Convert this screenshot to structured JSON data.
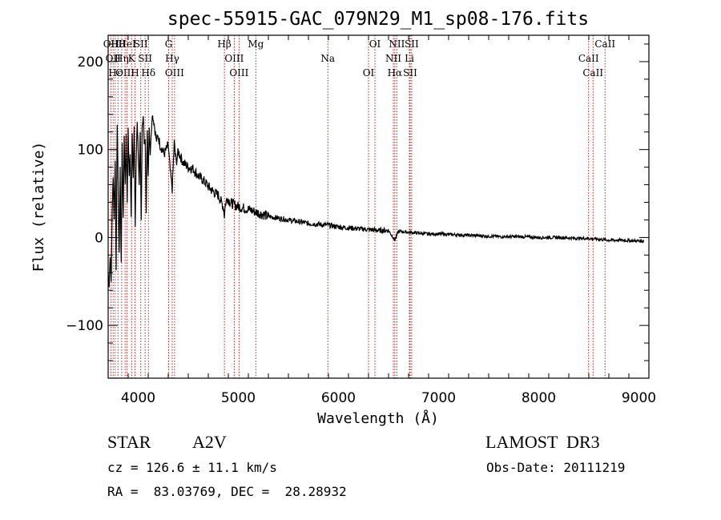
{
  "chart_data": {
    "type": "line",
    "title": "spec-55915-GAC_079N29_M1_sp08-176.fits",
    "xlabel": "Wavelength (Å)",
    "ylabel": "Flux (relative)",
    "xlim": [
      3700,
      9100
    ],
    "ylim": [
      -160,
      230
    ],
    "x_ticks": [
      4000,
      5000,
      6000,
      7000,
      8000,
      9000
    ],
    "y_ticks": [
      -100,
      0,
      100,
      200
    ],
    "grid": false,
    "series": [
      {
        "name": "spectrum",
        "x": [
          3700,
          3710,
          3720,
          3730,
          3740,
          3750,
          3760,
          3770,
          3780,
          3790,
          3800,
          3810,
          3820,
          3830,
          3840,
          3850,
          3860,
          3870,
          3880,
          3890,
          3900,
          3910,
          3920,
          3930,
          3940,
          3950,
          3960,
          3970,
          3980,
          3990,
          4000,
          4010,
          4020,
          4030,
          4040,
          4050,
          4060,
          4070,
          4080,
          4090,
          4100,
          4110,
          4120,
          4140,
          4160,
          4180,
          4200,
          4220,
          4240,
          4260,
          4280,
          4300,
          4320,
          4340,
          4360,
          4380,
          4400,
          4450,
          4500,
          4550,
          4600,
          4650,
          4700,
          4750,
          4800,
          4830,
          4850,
          4861,
          4870,
          4890,
          4920,
          4950,
          5000,
          5100,
          5200,
          5300,
          5400,
          5500,
          5600,
          5700,
          5800,
          5900,
          6000,
          6100,
          6200,
          6300,
          6400,
          6500,
          6563,
          6600,
          6700,
          6800,
          6900,
          7000,
          7200,
          7400,
          7600,
          7800,
          8000,
          8200,
          8400,
          8500,
          8600,
          8700,
          8800,
          9000,
          9050
        ],
        "y": [
          -40,
          -55,
          -20,
          -50,
          30,
          70,
          20,
          90,
          -35,
          130,
          60,
          -20,
          80,
          -30,
          110,
          20,
          115,
          60,
          118,
          40,
          122,
          70,
          95,
          25,
          120,
          65,
          125,
          15,
          90,
          130,
          100,
          60,
          120,
          20,
          125,
          140,
          105,
          110,
          30,
          120,
          70,
          125,
          95,
          140,
          130,
          110,
          115,
          105,
          100,
          95,
          100,
          105,
          75,
          55,
          108,
          85,
          98,
          85,
          80,
          78,
          70,
          65,
          58,
          52,
          48,
          40,
          35,
          25,
          38,
          45,
          40,
          38,
          35,
          32,
          28,
          24,
          22,
          20,
          18,
          16,
          15,
          14,
          12,
          11,
          10,
          9,
          8,
          8,
          -3,
          7,
          6,
          5,
          4,
          4,
          3,
          2,
          1,
          1,
          0,
          0,
          -1,
          -1,
          -2,
          -3,
          -3,
          -4,
          -4
        ]
      }
    ],
    "line_markers": [
      {
        "wl": 3727,
        "label": "OII"
      },
      {
        "wl": 3750,
        "label": "OII"
      },
      {
        "wl": 3770,
        "label": "Hε"
      },
      {
        "wl": 3798,
        "label": "Hθ"
      },
      {
        "wl": 3835,
        "label": "Hη"
      },
      {
        "wl": 3869,
        "label": "OIII"
      },
      {
        "wl": 3889,
        "label": "HeI"
      },
      {
        "wl": 3934,
        "label": "K"
      },
      {
        "wl": 3968,
        "label": "H"
      },
      {
        "wl": 4026,
        "label": "SII"
      },
      {
        "wl": 4069,
        "label": "SII"
      },
      {
        "wl": 4102,
        "label": "Hδ"
      },
      {
        "wl": 4304,
        "label": "G"
      },
      {
        "wl": 4340,
        "label": "Hγ"
      },
      {
        "wl": 4363,
        "label": "OIII"
      },
      {
        "wl": 4861,
        "label": "Hβ"
      },
      {
        "wl": 4959,
        "label": "OIII"
      },
      {
        "wl": 5007,
        "label": "OIII"
      },
      {
        "wl": 5175,
        "label": "Mg"
      },
      {
        "wl": 5894,
        "label": "Na"
      },
      {
        "wl": 6300,
        "label": "OI"
      },
      {
        "wl": 6364,
        "label": "OI"
      },
      {
        "wl": 6548,
        "label": "NII"
      },
      {
        "wl": 6563,
        "label": "Hα"
      },
      {
        "wl": 6583,
        "label": "NII"
      },
      {
        "wl": 6708,
        "label": "Li"
      },
      {
        "wl": 6716,
        "label": "SII"
      },
      {
        "wl": 6731,
        "label": "SII"
      },
      {
        "wl": 8498,
        "label": "CaII"
      },
      {
        "wl": 8542,
        "label": "CaII"
      },
      {
        "wl": 8662,
        "label": "CaII"
      }
    ]
  },
  "info": {
    "object_type": "STAR",
    "subclass": "A2V",
    "survey": "LAMOST  DR3",
    "redshift": "cz = 126.6 ± 11.1 km/s",
    "obs_date": "Obs-Date: 20111219",
    "coords": "RA =  83.03769, DEC =  28.28932"
  },
  "colors": {
    "spectrum": "#000000",
    "marker": "#cc0000",
    "axes": "#000000"
  }
}
